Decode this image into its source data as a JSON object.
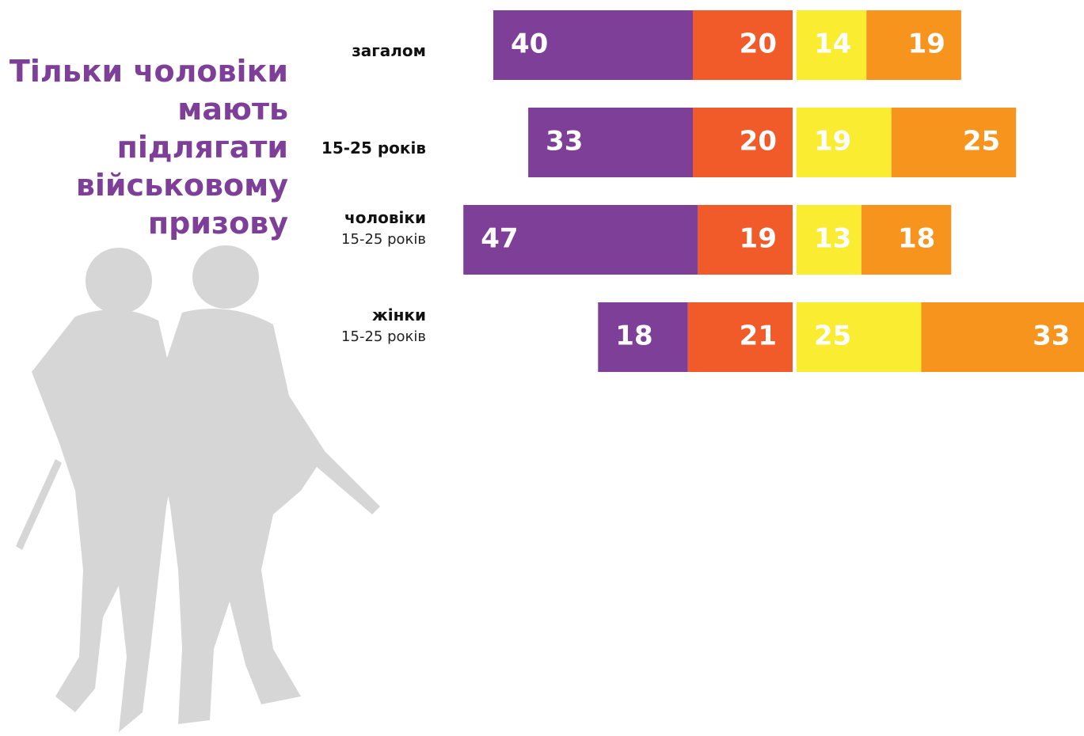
{
  "chart_data": {
    "type": "diverging-bar",
    "title": "Тільки чоловіки\nмають підлягати\nвійськовому\nпризову",
    "categories": [
      "загалом",
      "15-25 років",
      "чоловіки",
      "жінки"
    ],
    "category_notes": [
      null,
      null,
      "15-25 років",
      "15-25 років"
    ],
    "series": [
      {
        "color": "#7e3f98",
        "side": "left",
        "values": [
          40,
          33,
          47,
          18
        ]
      },
      {
        "color": "#f15a29",
        "side": "left",
        "values": [
          20,
          20,
          19,
          21
        ]
      },
      {
        "color": "#f9ec31",
        "side": "right",
        "values": [
          14,
          19,
          13,
          25
        ]
      },
      {
        "color": "#f7941d",
        "side": "right",
        "values": [
          19,
          25,
          18,
          33
        ]
      }
    ]
  }
}
